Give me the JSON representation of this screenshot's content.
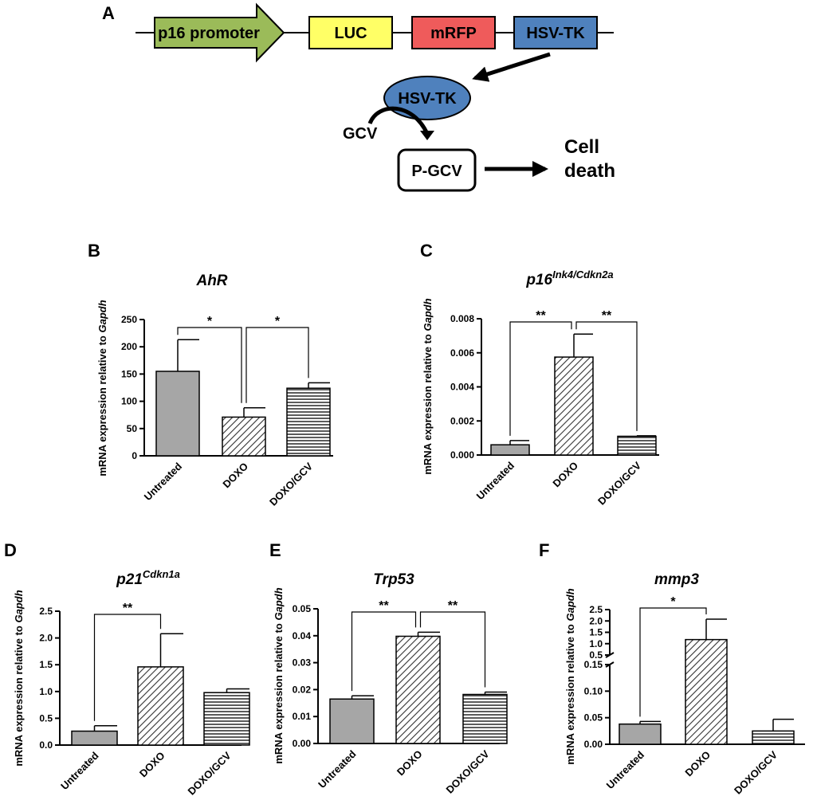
{
  "diagram": {
    "label": "A",
    "boxes": [
      {
        "text": "p16 promoter",
        "color": "#9bbb59"
      },
      {
        "text": "LUC",
        "color": "#ffff66"
      },
      {
        "text": "mRFP",
        "color": "#ef5b5b"
      },
      {
        "text": "HSV-TK",
        "color": "#4f81bd"
      }
    ],
    "enzyme": {
      "text": "HSV-TK",
      "color": "#4f81bd"
    },
    "substrate": "GCV",
    "product": "P-GCV",
    "outcome_line1": "Cell",
    "outcome_line2": "death"
  },
  "chart_data": [
    {
      "id": "B",
      "type": "bar",
      "title_main": "AhR",
      "title_sup": "",
      "ylabel_prefix": "mRNA expression relative to ",
      "ylabel_gene": "Gapdh",
      "categories": [
        "Untreated",
        "DOXO",
        "DOXO/GCV"
      ],
      "values": [
        155,
        71,
        124
      ],
      "errors": [
        58,
        17,
        10
      ],
      "ylim": [
        0,
        250
      ],
      "ticks": [
        {
          "v": 0,
          "t": "0"
        },
        {
          "v": 50,
          "t": "50"
        },
        {
          "v": 100,
          "t": "100"
        },
        {
          "v": 150,
          "t": "150"
        },
        {
          "v": 200,
          "t": "200"
        },
        {
          "v": 250,
          "t": "250"
        }
      ],
      "significance": [
        {
          "from": 0,
          "to": 1,
          "label": "*"
        },
        {
          "from": 1,
          "to": 2,
          "label": "*"
        }
      ]
    },
    {
      "id": "C",
      "type": "bar",
      "title_main": "p16",
      "title_sup": "Ink4/Cdkn2a",
      "ylabel_prefix": "mRNA expression relative to ",
      "ylabel_gene": "Gapdh",
      "categories": [
        "Untreated",
        "DOXO",
        "DOXO/GCV"
      ],
      "values": [
        0.0006,
        0.00575,
        0.0011
      ],
      "errors": [
        0.00025,
        0.00135,
        3e-05
      ],
      "ylim": [
        0,
        0.008
      ],
      "ticks": [
        {
          "v": 0,
          "t": "0.000"
        },
        {
          "v": 0.002,
          "t": "0.002"
        },
        {
          "v": 0.004,
          "t": "0.004"
        },
        {
          "v": 0.006,
          "t": "0.006"
        },
        {
          "v": 0.008,
          "t": "0.008"
        }
      ],
      "significance": [
        {
          "from": 0,
          "to": 1,
          "label": "**"
        },
        {
          "from": 1,
          "to": 2,
          "label": "**"
        }
      ]
    },
    {
      "id": "D",
      "type": "bar",
      "title_main": "p21",
      "title_sup": "Cdkn1a",
      "ylabel_prefix": "mRNA expression relative to ",
      "ylabel_gene": "Gapdh",
      "categories": [
        "Untreated",
        "DOXO",
        "DOXO/GCV"
      ],
      "values": [
        0.26,
        1.46,
        0.98
      ],
      "errors": [
        0.1,
        0.62,
        0.07
      ],
      "ylim": [
        0,
        2.5
      ],
      "ticks": [
        {
          "v": 0,
          "t": "0.0"
        },
        {
          "v": 0.5,
          "t": "0.5"
        },
        {
          "v": 1.0,
          "t": "1.0"
        },
        {
          "v": 1.5,
          "t": "1.5"
        },
        {
          "v": 2.0,
          "t": "2.0"
        },
        {
          "v": 2.5,
          "t": "2.5"
        }
      ],
      "significance": [
        {
          "from": 0,
          "to": 1,
          "label": "**"
        }
      ]
    },
    {
      "id": "E",
      "type": "bar",
      "title_main": "Trp53",
      "title_sup": "",
      "ylabel_prefix": "mRNA expression relative to ",
      "ylabel_gene": "Gapdh",
      "categories": [
        "Untreated",
        "DOXO",
        "DOXO/GCV"
      ],
      "values": [
        0.0165,
        0.0398,
        0.0182
      ],
      "errors": [
        0.0012,
        0.0015,
        0.0009
      ],
      "ylim": [
        0,
        0.05
      ],
      "ticks": [
        {
          "v": 0,
          "t": "0.00"
        },
        {
          "v": 0.01,
          "t": "0.01"
        },
        {
          "v": 0.02,
          "t": "0.02"
        },
        {
          "v": 0.03,
          "t": "0.03"
        },
        {
          "v": 0.04,
          "t": "0.04"
        },
        {
          "v": 0.05,
          "t": "0.05"
        }
      ],
      "significance": [
        {
          "from": 0,
          "to": 1,
          "label": "**"
        },
        {
          "from": 1,
          "to": 2,
          "label": "**"
        }
      ]
    },
    {
      "id": "F",
      "type": "bar",
      "title_main": "mmp3",
      "title_sup": "",
      "ylabel_prefix": "mRNA expression relative to ",
      "ylabel_gene": "Gapdh",
      "categories": [
        "Untreated",
        "DOXO",
        "DOXO/GCV"
      ],
      "values": [
        0.038,
        1.18,
        0.025
      ],
      "errors": [
        0.005,
        0.9,
        0.022
      ],
      "axis_break": {
        "lower": [
          0,
          0.15
        ],
        "upper": [
          0.5,
          2.5
        ]
      },
      "ticks_lower": [
        {
          "v": 0,
          "t": "0.00"
        },
        {
          "v": 0.05,
          "t": "0.05"
        },
        {
          "v": 0.1,
          "t": "0.10"
        },
        {
          "v": 0.15,
          "t": "0.15"
        }
      ],
      "ticks_upper": [
        {
          "v": 0.5,
          "t": "0.5"
        },
        {
          "v": 1.0,
          "t": "1.0"
        },
        {
          "v": 1.5,
          "t": "1.5"
        },
        {
          "v": 2.0,
          "t": "2.0"
        },
        {
          "v": 2.5,
          "t": "2.5"
        }
      ],
      "significance": [
        {
          "from": 0,
          "to": 1,
          "label": "*"
        }
      ]
    }
  ]
}
